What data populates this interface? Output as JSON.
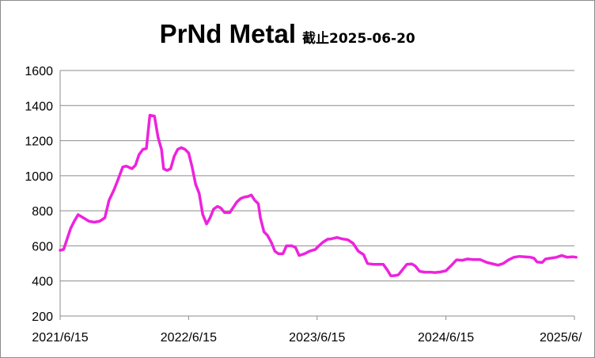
{
  "chart_data": {
    "type": "line",
    "title": "PrNd Metal",
    "subtitle": "截止2025-06-20",
    "xlabel": "",
    "ylabel": "",
    "ylim": [
      200,
      1600
    ],
    "yticks": [
      200,
      400,
      600,
      800,
      1000,
      1200,
      1400,
      1600
    ],
    "xticks": [
      "2021/6/15",
      "2022/6/15",
      "2023/6/15",
      "2024/6/15",
      "2025/6/"
    ],
    "grid": "horizontal",
    "legend": "none",
    "series": [
      {
        "color": "#ee22dd",
        "points": [
          [
            "2021-06-15",
            575
          ],
          [
            "2021-06-25",
            580
          ],
          [
            "2021-07-05",
            640
          ],
          [
            "2021-07-15",
            700
          ],
          [
            "2021-07-25",
            740
          ],
          [
            "2021-08-05",
            778
          ],
          [
            "2021-08-20",
            760
          ],
          [
            "2021-09-05",
            740
          ],
          [
            "2021-09-20",
            735
          ],
          [
            "2021-10-05",
            740
          ],
          [
            "2021-10-20",
            760
          ],
          [
            "2021-11-01",
            860
          ],
          [
            "2021-11-15",
            920
          ],
          [
            "2021-11-25",
            970
          ],
          [
            "2021-12-10",
            1050
          ],
          [
            "2021-12-20",
            1055
          ],
          [
            "2022-01-05",
            1040
          ],
          [
            "2022-01-15",
            1060
          ],
          [
            "2022-01-25",
            1120
          ],
          [
            "2022-02-05",
            1150
          ],
          [
            "2022-02-15",
            1155
          ],
          [
            "2022-02-25",
            1345
          ],
          [
            "2022-03-10",
            1340
          ],
          [
            "2022-03-20",
            1220
          ],
          [
            "2022-03-30",
            1150
          ],
          [
            "2022-04-05",
            1040
          ],
          [
            "2022-04-15",
            1030
          ],
          [
            "2022-04-25",
            1040
          ],
          [
            "2022-05-05",
            1110
          ],
          [
            "2022-05-15",
            1150
          ],
          [
            "2022-05-25",
            1160
          ],
          [
            "2022-06-05",
            1150
          ],
          [
            "2022-06-15",
            1130
          ],
          [
            "2022-06-25",
            1050
          ],
          [
            "2022-07-05",
            950
          ],
          [
            "2022-07-15",
            900
          ],
          [
            "2022-07-25",
            780
          ],
          [
            "2022-08-05",
            725
          ],
          [
            "2022-08-15",
            760
          ],
          [
            "2022-08-25",
            810
          ],
          [
            "2022-09-05",
            825
          ],
          [
            "2022-09-15",
            815
          ],
          [
            "2022-09-25",
            790
          ],
          [
            "2022-10-10",
            790
          ],
          [
            "2022-10-20",
            820
          ],
          [
            "2022-10-30",
            850
          ],
          [
            "2022-11-10",
            870
          ],
          [
            "2022-11-20",
            878
          ],
          [
            "2022-12-01",
            882
          ],
          [
            "2022-12-10",
            890
          ],
          [
            "2022-12-20",
            860
          ],
          [
            "2022-12-30",
            840
          ],
          [
            "2023-01-05",
            760
          ],
          [
            "2023-01-15",
            680
          ],
          [
            "2023-01-25",
            660
          ],
          [
            "2023-02-05",
            620
          ],
          [
            "2023-02-15",
            570
          ],
          [
            "2023-02-25",
            555
          ],
          [
            "2023-03-10",
            555
          ],
          [
            "2023-03-20",
            600
          ],
          [
            "2023-04-05",
            600
          ],
          [
            "2023-04-15",
            590
          ],
          [
            "2023-04-25",
            545
          ],
          [
            "2023-05-10",
            555
          ],
          [
            "2023-05-25",
            570
          ],
          [
            "2023-06-10",
            580
          ],
          [
            "2023-06-20",
            600
          ],
          [
            "2023-07-01",
            620
          ],
          [
            "2023-07-15",
            638
          ],
          [
            "2023-07-25",
            640
          ],
          [
            "2023-08-10",
            648
          ],
          [
            "2023-08-25",
            640
          ],
          [
            "2023-09-10",
            635
          ],
          [
            "2023-09-25",
            615
          ],
          [
            "2023-10-10",
            570
          ],
          [
            "2023-10-25",
            550
          ],
          [
            "2023-11-05",
            500
          ],
          [
            "2023-11-20",
            495
          ],
          [
            "2023-12-05",
            495
          ],
          [
            "2023-12-20",
            495
          ],
          [
            "2024-01-01",
            460
          ],
          [
            "2024-01-10",
            430
          ],
          [
            "2024-01-20",
            430
          ],
          [
            "2024-02-01",
            435
          ],
          [
            "2024-02-15",
            470
          ],
          [
            "2024-02-25",
            495
          ],
          [
            "2024-03-10",
            497
          ],
          [
            "2024-03-20",
            485
          ],
          [
            "2024-04-01",
            455
          ],
          [
            "2024-04-15",
            450
          ],
          [
            "2024-05-01",
            450
          ],
          [
            "2024-05-15",
            448
          ],
          [
            "2024-06-01",
            452
          ],
          [
            "2024-06-15",
            458
          ],
          [
            "2024-07-01",
            490
          ],
          [
            "2024-07-15",
            520
          ],
          [
            "2024-08-01",
            518
          ],
          [
            "2024-08-15",
            525
          ],
          [
            "2024-09-01",
            522
          ],
          [
            "2024-09-20",
            522
          ],
          [
            "2024-10-10",
            505
          ],
          [
            "2024-10-25",
            498
          ],
          [
            "2024-11-10",
            490
          ],
          [
            "2024-11-25",
            500
          ],
          [
            "2024-12-10",
            520
          ],
          [
            "2024-12-25",
            535
          ],
          [
            "2025-01-10",
            540
          ],
          [
            "2025-01-25",
            538
          ],
          [
            "2025-02-10",
            535
          ],
          [
            "2025-02-20",
            530
          ],
          [
            "2025-03-01",
            508
          ],
          [
            "2025-03-15",
            505
          ],
          [
            "2025-03-25",
            525
          ],
          [
            "2025-04-10",
            530
          ],
          [
            "2025-04-25",
            535
          ],
          [
            "2025-05-10",
            545
          ],
          [
            "2025-05-25",
            535
          ],
          [
            "2025-06-10",
            538
          ],
          [
            "2025-06-20",
            535
          ]
        ]
      }
    ]
  }
}
